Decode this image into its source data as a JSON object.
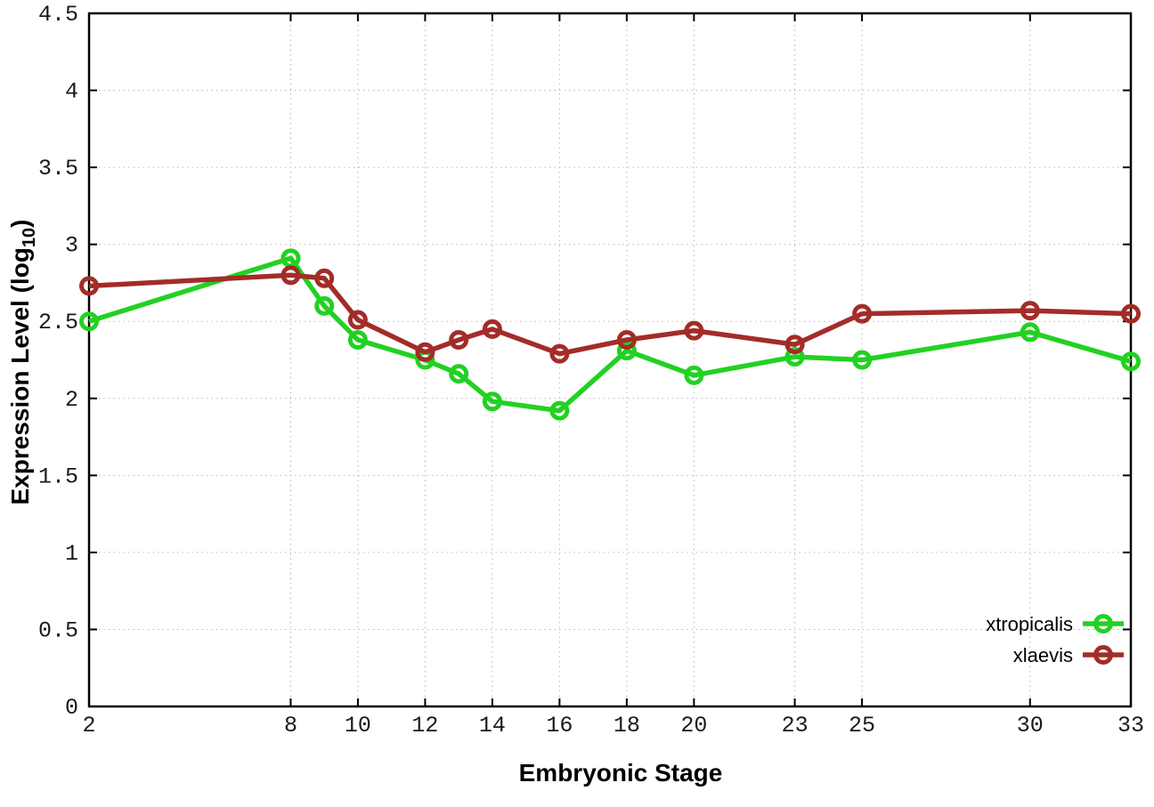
{
  "chart_data": {
    "type": "line",
    "title": "",
    "xlabel": "Embryonic Stage",
    "ylabel_main": "Expression Level (log",
    "ylabel_sub": "10",
    "ylabel_end": ")",
    "x": [
      2,
      8,
      9,
      10,
      12,
      13,
      14,
      16,
      18,
      20,
      23,
      25,
      30,
      33
    ],
    "xtick_labels": [
      2,
      8,
      10,
      12,
      14,
      16,
      18,
      20,
      23,
      25,
      30,
      33
    ],
    "ytick_labels": [
      0,
      0.5,
      1,
      1.5,
      2,
      2.5,
      3,
      3.5,
      4,
      4.5
    ],
    "xlim": [
      2,
      33
    ],
    "ylim": [
      0,
      4.5
    ],
    "grid": true,
    "legend_position": "bottom-right",
    "series": [
      {
        "name": "xtropicalis",
        "color": "#22d122",
        "values": [
          2.5,
          2.91,
          2.6,
          2.38,
          2.25,
          2.16,
          1.98,
          1.92,
          2.31,
          2.15,
          2.27,
          2.25,
          2.43,
          2.24
        ]
      },
      {
        "name": "xlaevis",
        "color": "#a32c28",
        "values": [
          2.73,
          2.8,
          2.78,
          2.51,
          2.3,
          2.38,
          2.45,
          2.29,
          2.38,
          2.44,
          2.35,
          2.55,
          2.57,
          2.55
        ]
      }
    ]
  },
  "colors": {
    "border": "#000000",
    "grid": "#b8b8b8",
    "background": "#ffffff",
    "text": "#000000"
  }
}
